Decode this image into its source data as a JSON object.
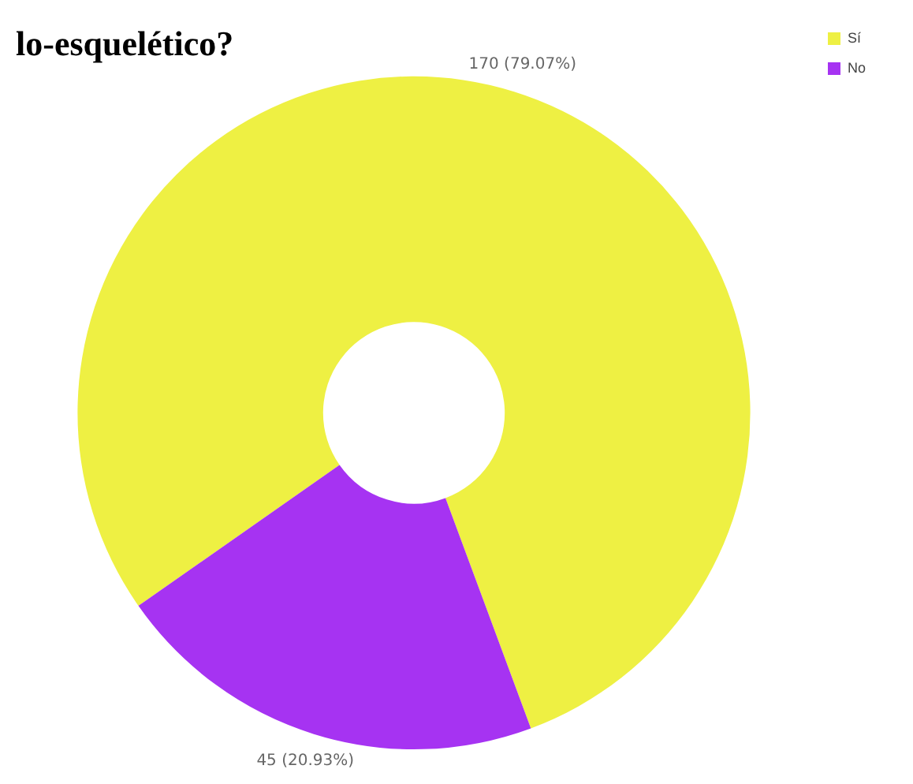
{
  "chart_data": {
    "type": "donut",
    "title": "lo-esquelético?",
    "categories": [
      "Sí",
      "No"
    ],
    "values": [
      170,
      45
    ],
    "colors": [
      "#eef043",
      "#a633f2"
    ],
    "value_labels": [
      "170 (79.07%)",
      "45 (20.93%)"
    ],
    "legend": "top right"
  }
}
